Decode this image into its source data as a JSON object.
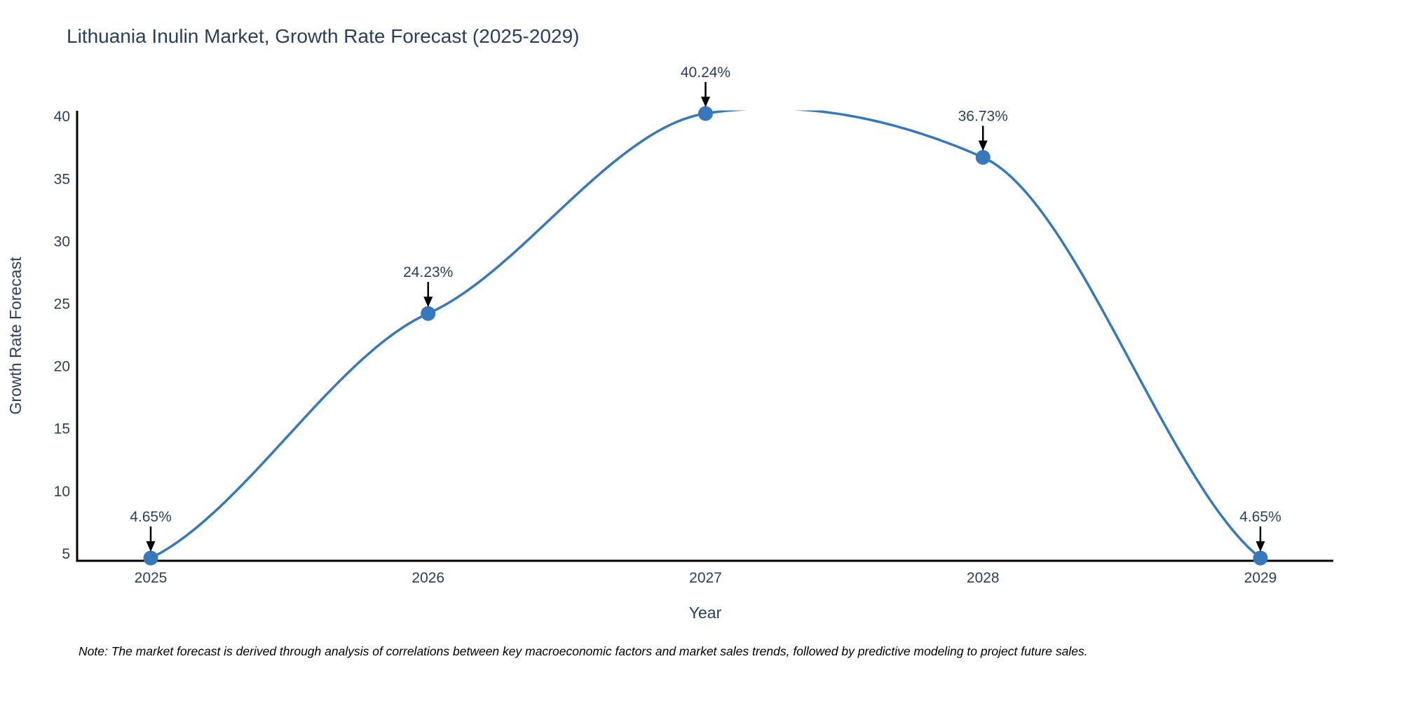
{
  "title": "Lithuania Inulin Market, Growth Rate Forecast (2025-2029)",
  "note": "Note: The market forecast is derived through analysis of correlations between key macroeconomic factors and market sales trends, followed by predictive modeling to project future sales.",
  "chart_data": {
    "type": "line",
    "title": "Lithuania Inulin Market, Growth Rate Forecast (2025-2029)",
    "xlabel": "Year",
    "ylabel": "Growth Rate Forecast",
    "x": [
      2025,
      2026,
      2027,
      2028,
      2029
    ],
    "series": [
      {
        "name": "Growth Rate Forecast",
        "values": [
          4.65,
          24.23,
          40.24,
          36.73,
          4.65
        ],
        "point_labels": [
          "4.65%",
          "24.23%",
          "40.24%",
          "36.73%",
          "4.65%"
        ]
      }
    ],
    "line_shape": "spline",
    "markers": true,
    "annotations_arrow": "down",
    "yticks": [
      5,
      10,
      15,
      20,
      25,
      30,
      35,
      40
    ],
    "ylim": [
      4.43,
      40.46
    ],
    "grid": false,
    "legend_position": "none",
    "colors": {
      "line": "#3678bc",
      "marker": "#3678bc",
      "text": "#2a3f5f",
      "axis": "#000000",
      "arrow": "#000000",
      "note_text": "#000000",
      "background": "#ffffff"
    }
  }
}
